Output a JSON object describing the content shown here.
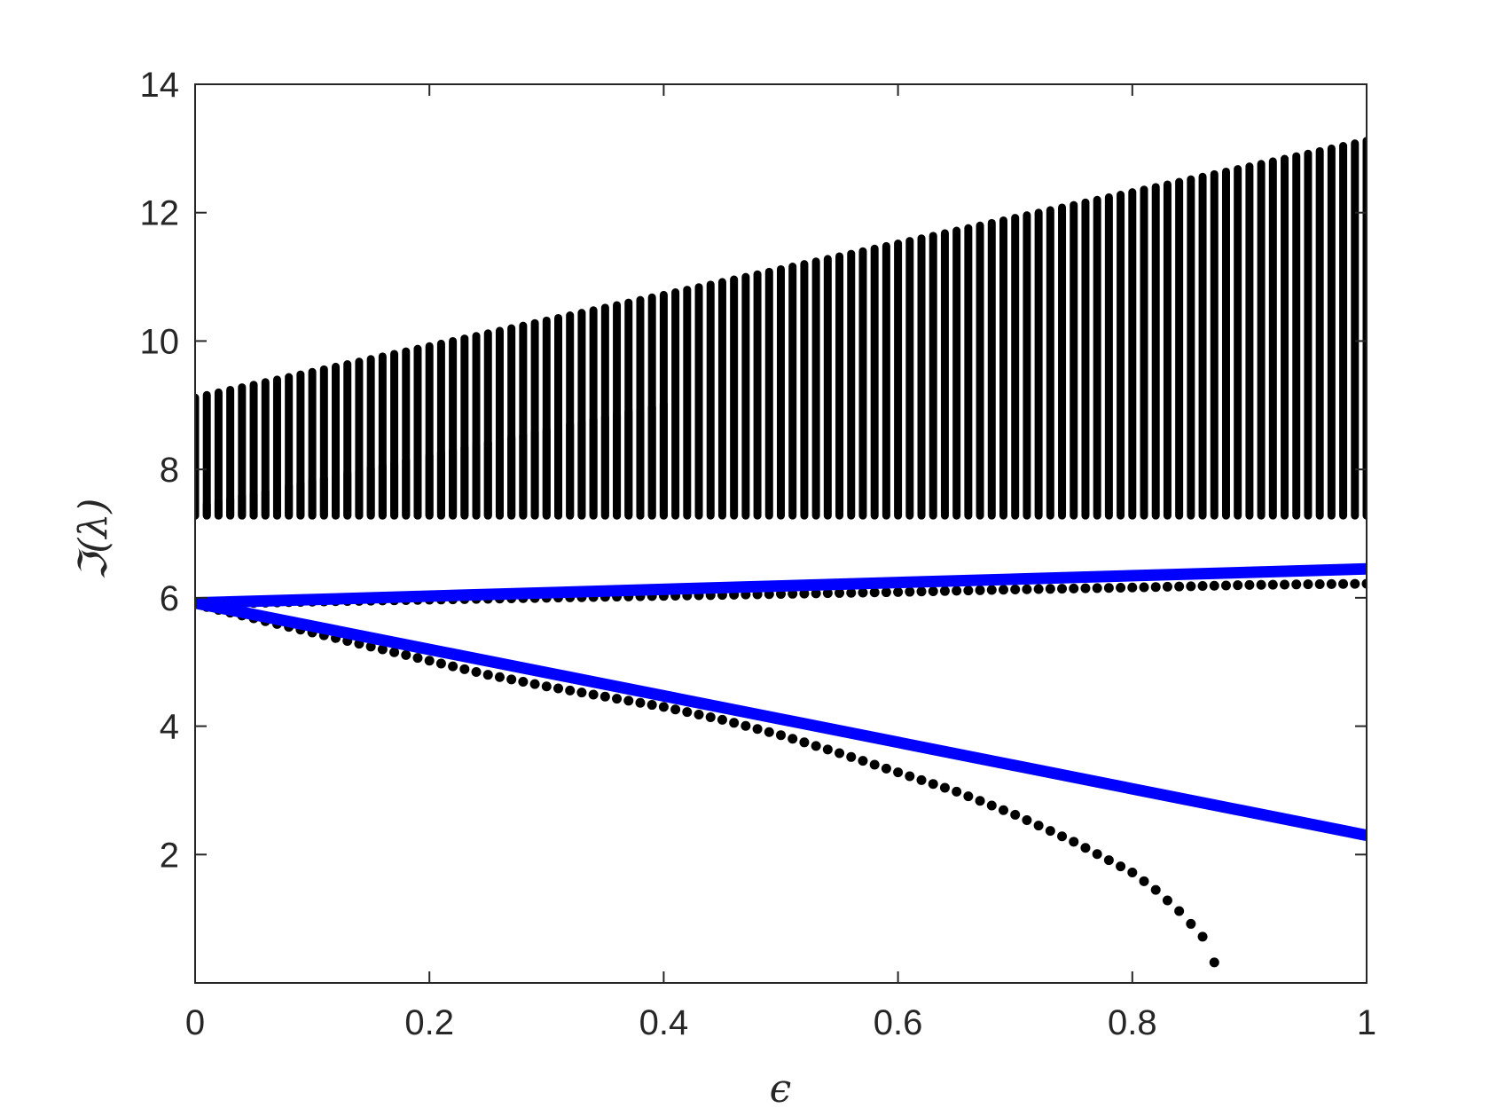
{
  "chart_data": {
    "type": "scatter",
    "title": "",
    "xlabel": "ϵ",
    "ylabel": "ℑ(λ)",
    "xlim": [
      0,
      1
    ],
    "ylim": [
      0,
      14
    ],
    "xticks": [
      0,
      0.2,
      0.4,
      0.6,
      0.8,
      1
    ],
    "xtick_labels": [
      "0",
      "0.2",
      "0.4",
      "0.6",
      "0.8",
      "1"
    ],
    "yticks": [
      2,
      4,
      6,
      8,
      10,
      12,
      14
    ],
    "ytick_labels": [
      "2",
      "4",
      "6",
      "8",
      "10",
      "12",
      "14"
    ],
    "grid": false,
    "legend": "none",
    "marker_color": "#000000",
    "line_color": "#0000ff",
    "bands": [
      {
        "x_start": 0,
        "x_end": 1,
        "low_start": 7.35,
        "low_end": 7.35,
        "high_start": 9.05,
        "high_end": 13.05
      },
      {
        "x_start": 0,
        "x_end": 0.4,
        "low_start": 7.35,
        "low_end": 7.35,
        "high_start": 7.35,
        "high_end": 8.95
      }
    ],
    "band_gap": {
      "x_start": 0,
      "x_end": 0.4,
      "low_start": 7.5,
      "low_end": 8.95,
      "high_start": 9.05,
      "high_end": 10.65
    },
    "band_step": 0.01,
    "series": [
      {
        "kind": "points",
        "x": [
          0,
          0.05,
          0.1,
          0.15,
          0.2,
          0.25,
          0.3,
          0.35,
          0.4,
          0.45,
          0.5,
          0.55,
          0.6,
          0.65,
          0.7,
          0.75,
          0.8,
          0.82,
          0.84,
          0.86,
          0.87
        ],
        "y": [
          5.9,
          5.68,
          5.46,
          5.24,
          5.02,
          4.8,
          4.62,
          4.46,
          4.3,
          4.1,
          3.86,
          3.58,
          3.28,
          2.98,
          2.62,
          2.2,
          1.72,
          1.45,
          1.12,
          0.72,
          0.32
        ]
      },
      {
        "kind": "points",
        "x": [
          0,
          0.1,
          0.2,
          0.3,
          0.4,
          0.5,
          0.6,
          0.7,
          0.8,
          0.9,
          1
        ],
        "y": [
          5.9,
          5.94,
          5.97,
          6.0,
          6.03,
          6.06,
          6.09,
          6.13,
          6.16,
          6.2,
          6.22
        ]
      },
      {
        "kind": "line",
        "x": [
          0,
          1
        ],
        "y": [
          5.92,
          6.45
        ]
      },
      {
        "kind": "line",
        "x": [
          0,
          1
        ],
        "y": [
          5.92,
          2.3
        ]
      }
    ]
  }
}
